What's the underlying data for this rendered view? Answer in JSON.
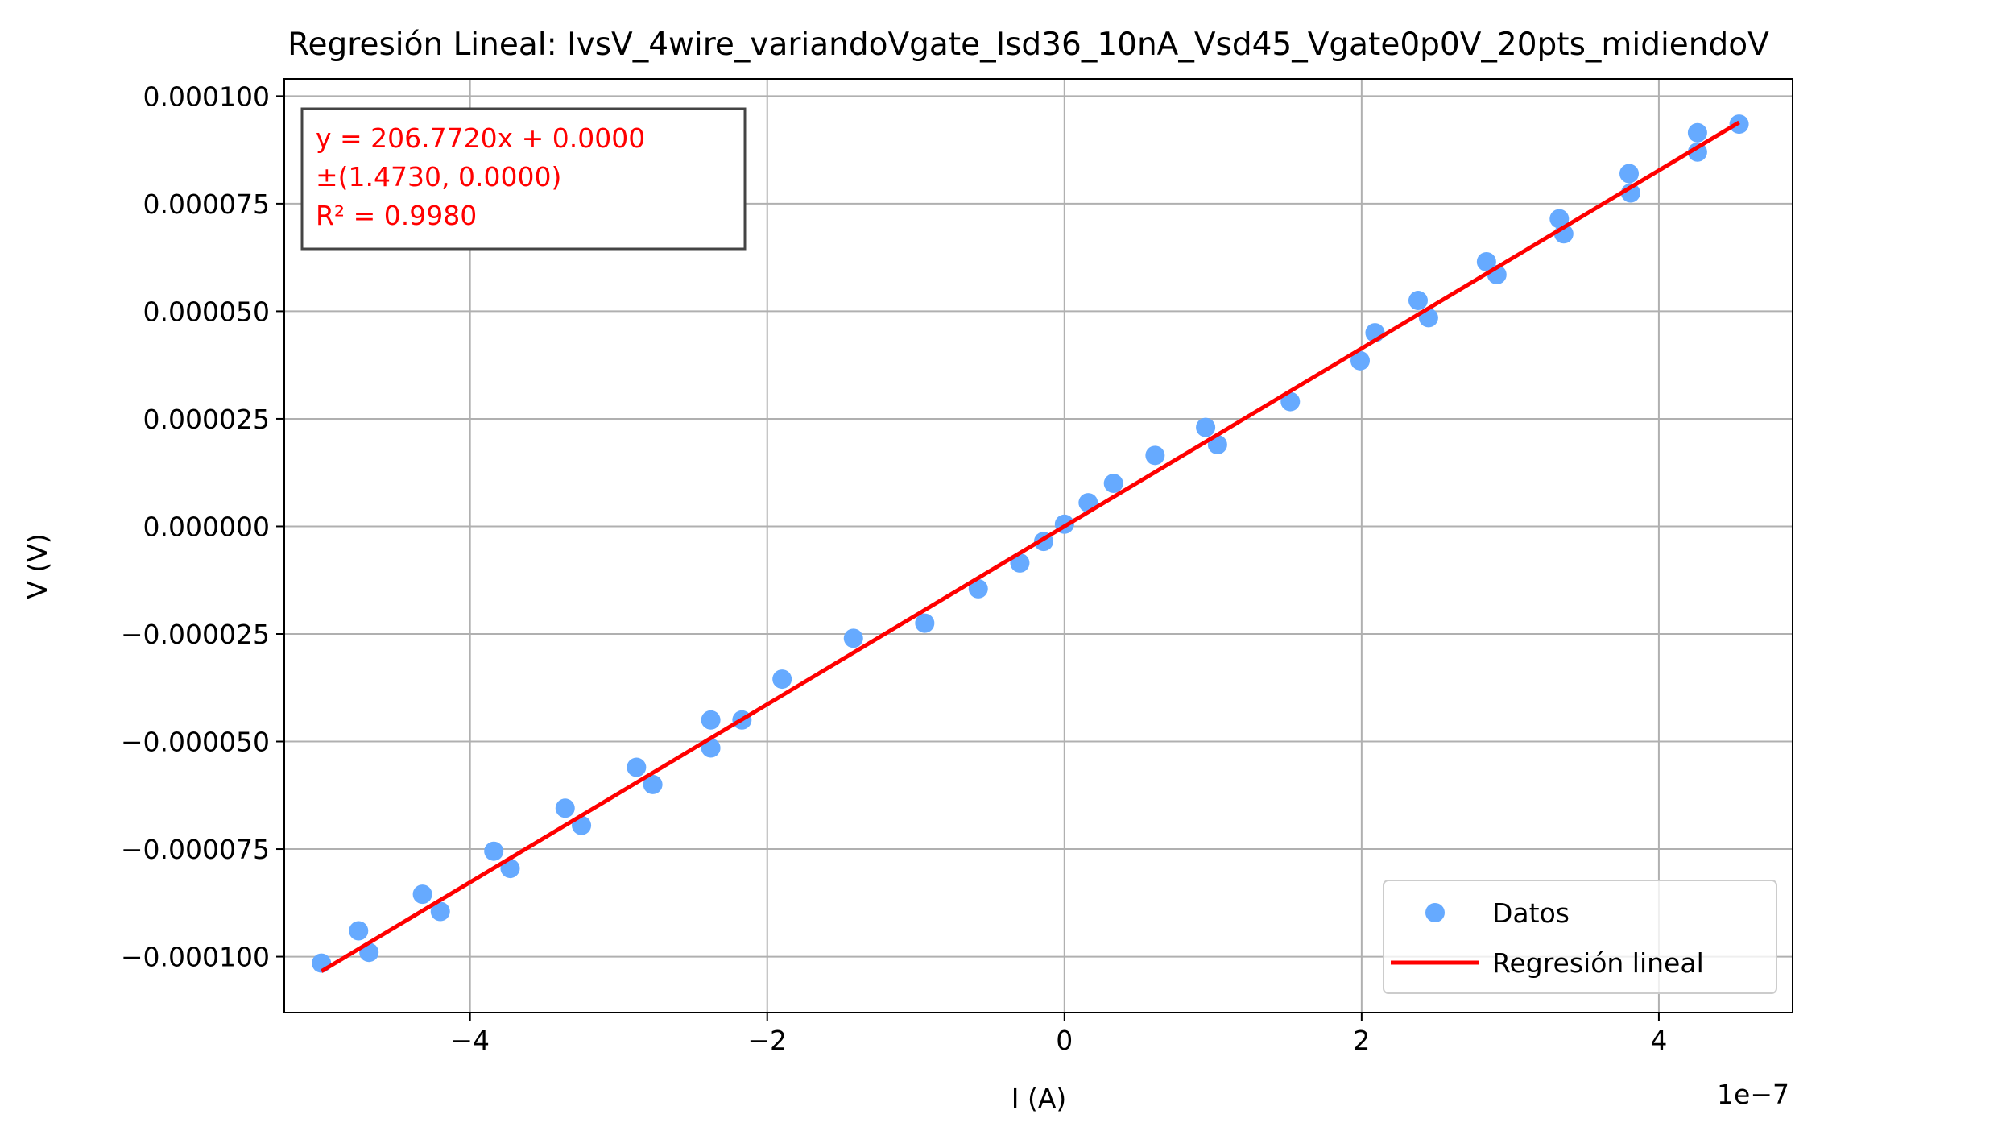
{
  "chart_data": {
    "type": "scatter",
    "title": "Regresión Lineal: IvsV_4wire_variandoVgate_Isd36_10nA_Vsd45_Vgate0p0V_20pts_midiendoV",
    "xlabel": "I (A)",
    "ylabel": "V (V)",
    "x_offset_label": "1e−7",
    "xlim": [
      -5.25e-07,
      4.9e-07
    ],
    "ylim": [
      -0.000113,
      0.000104
    ],
    "grid": true,
    "legend_position": "lower-right",
    "x_ticks": [
      {
        "value": -4e-07,
        "label": "−4"
      },
      {
        "value": -2e-07,
        "label": "−2"
      },
      {
        "value": 0,
        "label": "0"
      },
      {
        "value": 2e-07,
        "label": "2"
      },
      {
        "value": 4e-07,
        "label": "4"
      }
    ],
    "y_ticks": [
      {
        "value": 0.0001,
        "label": "0.000100"
      },
      {
        "value": 7.5e-05,
        "label": "0.000075"
      },
      {
        "value": 5e-05,
        "label": "0.000050"
      },
      {
        "value": 2.5e-05,
        "label": "0.000025"
      },
      {
        "value": 0,
        "label": "0.000000"
      },
      {
        "value": -2.5e-05,
        "label": "−0.000025"
      },
      {
        "value": -5e-05,
        "label": "−0.000050"
      },
      {
        "value": -7.5e-05,
        "label": "−0.000075"
      },
      {
        "value": -0.0001,
        "label": "−0.000100"
      }
    ],
    "series": [
      {
        "name": "Datos",
        "kind": "scatter",
        "color": "#66aaff",
        "points": [
          {
            "x": -5e-07,
            "y": -0.0001015
          },
          {
            "x": -4.75e-07,
            "y": -9.4e-05
          },
          {
            "x": -4.68e-07,
            "y": -9.9e-05
          },
          {
            "x": -4.32e-07,
            "y": -8.55e-05
          },
          {
            "x": -4.2e-07,
            "y": -8.95e-05
          },
          {
            "x": -3.84e-07,
            "y": -7.55e-05
          },
          {
            "x": -3.73e-07,
            "y": -7.95e-05
          },
          {
            "x": -3.36e-07,
            "y": -6.55e-05
          },
          {
            "x": -3.25e-07,
            "y": -6.95e-05
          },
          {
            "x": -2.88e-07,
            "y": -5.6e-05
          },
          {
            "x": -2.77e-07,
            "y": -6e-05
          },
          {
            "x": -2.38e-07,
            "y": -4.5e-05
          },
          {
            "x": -2.38e-07,
            "y": -5.15e-05
          },
          {
            "x": -2.17e-07,
            "y": -4.5e-05
          },
          {
            "x": -1.9e-07,
            "y": -3.55e-05
          },
          {
            "x": -1.42e-07,
            "y": -2.6e-05
          },
          {
            "x": -9.4e-08,
            "y": -2.25e-05
          },
          {
            "x": -5.8e-08,
            "y": -1.45e-05
          },
          {
            "x": -3e-08,
            "y": -8.5e-06
          },
          {
            "x": -1.4e-08,
            "y": -3.5e-06
          },
          {
            "x": 0,
            "y": 5e-07
          },
          {
            "x": 1.6e-08,
            "y": 5.5e-06
          },
          {
            "x": 3.3e-08,
            "y": 1e-05
          },
          {
            "x": 6.1e-08,
            "y": 1.65e-05
          },
          {
            "x": 9.5e-08,
            "y": 2.3e-05
          },
          {
            "x": 1.03e-07,
            "y": 1.9e-05
          },
          {
            "x": 1.52e-07,
            "y": 2.9e-05
          },
          {
            "x": 1.99e-07,
            "y": 3.85e-05
          },
          {
            "x": 2.09e-07,
            "y": 4.5e-05
          },
          {
            "x": 2.38e-07,
            "y": 5.25e-05
          },
          {
            "x": 2.45e-07,
            "y": 4.85e-05
          },
          {
            "x": 2.84e-07,
            "y": 6.15e-05
          },
          {
            "x": 2.91e-07,
            "y": 5.85e-05
          },
          {
            "x": 3.33e-07,
            "y": 7.15e-05
          },
          {
            "x": 3.36e-07,
            "y": 6.8e-05
          },
          {
            "x": 3.8e-07,
            "y": 8.2e-05
          },
          {
            "x": 3.81e-07,
            "y": 7.75e-05
          },
          {
            "x": 4.26e-07,
            "y": 9.15e-05
          },
          {
            "x": 4.26e-07,
            "y": 8.7e-05
          },
          {
            "x": 4.54e-07,
            "y": 9.35e-05
          }
        ]
      },
      {
        "name": "Regresión lineal",
        "kind": "line",
        "color": "#ff0000",
        "points": [
          {
            "x": -5e-07,
            "y": -0.0001034
          },
          {
            "x": 4.54e-07,
            "y": 9.39e-05
          }
        ]
      }
    ],
    "annotation": {
      "lines": [
        "y = 206.7720x + 0.0000",
        "±(1.4730, 0.0000)",
        "R² = 0.9980"
      ],
      "color": "#ff0000",
      "position": "top-left"
    }
  }
}
